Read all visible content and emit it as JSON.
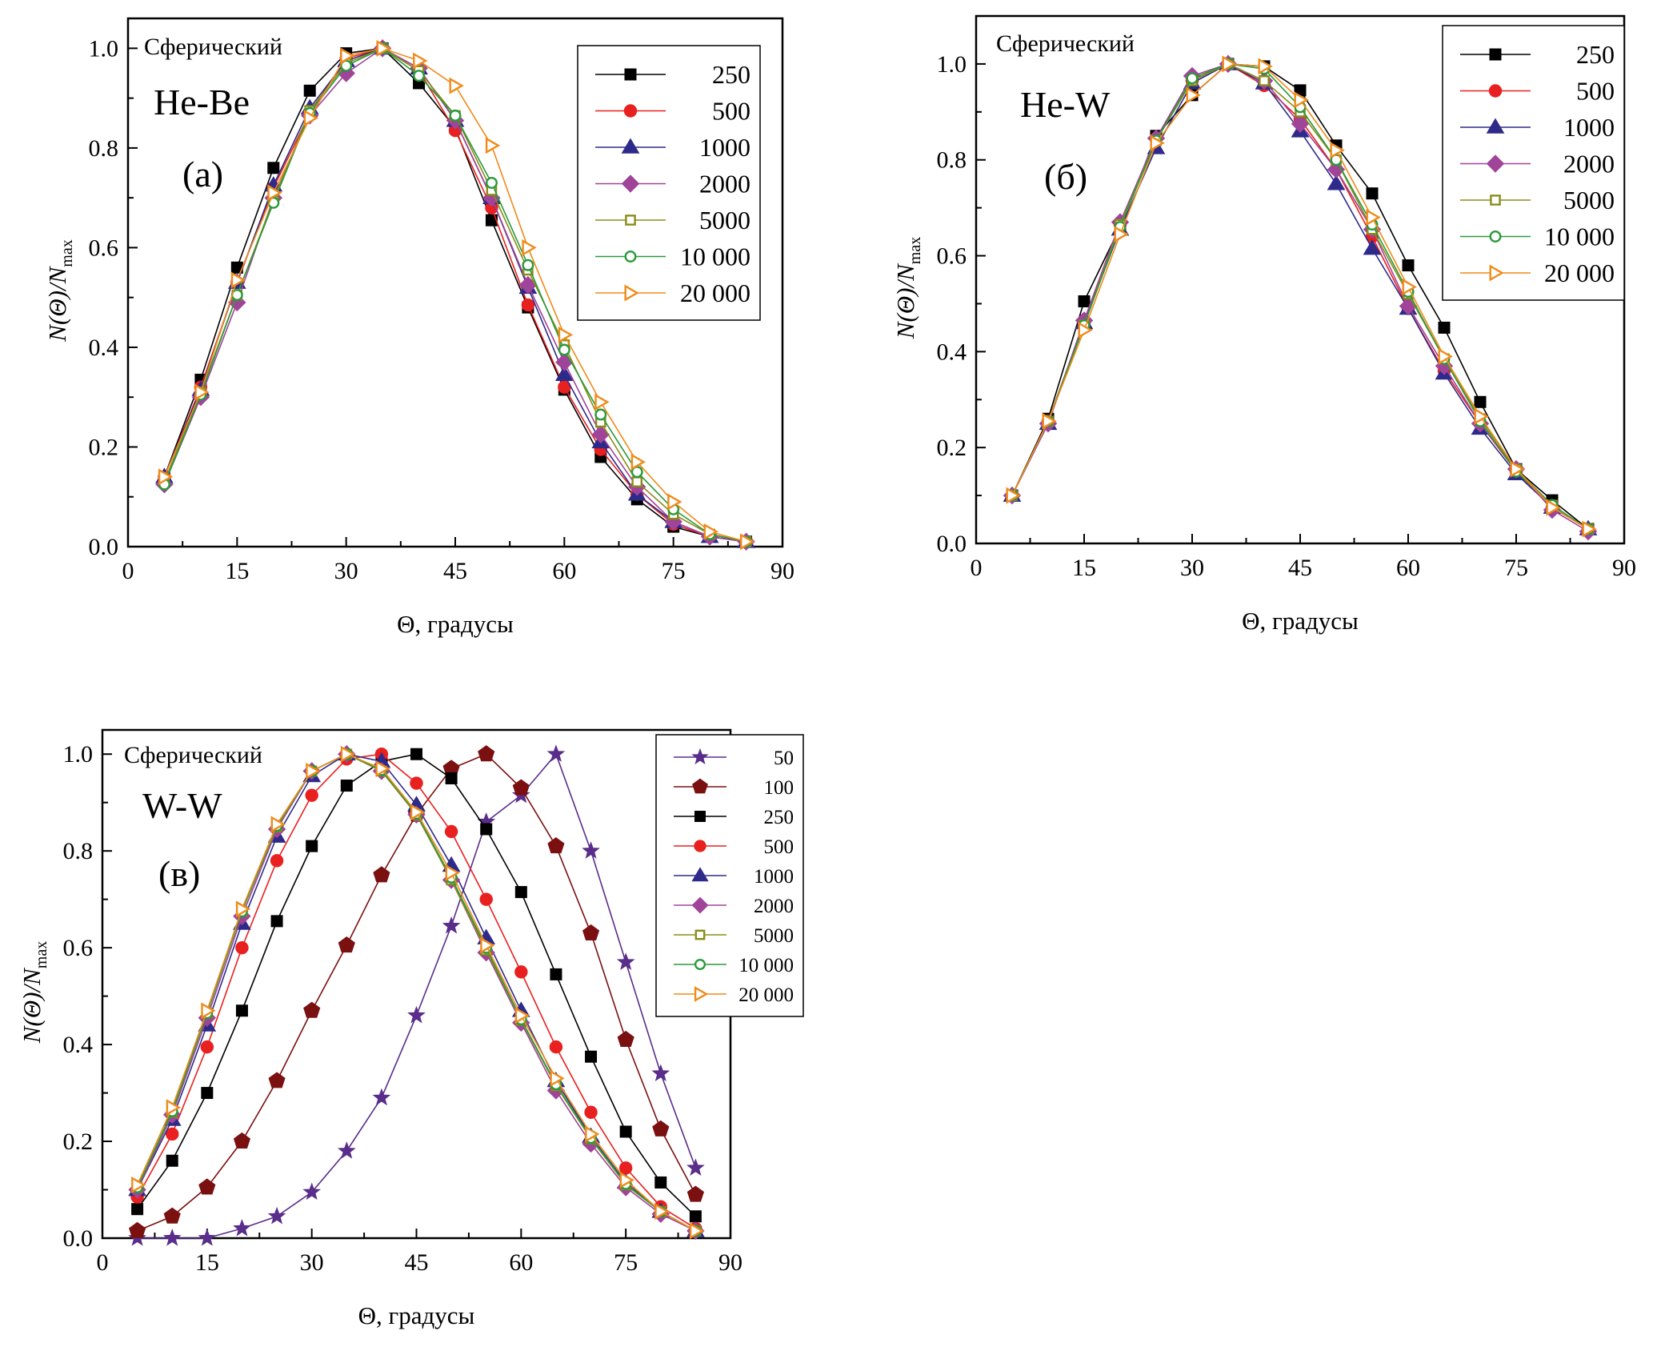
{
  "chart_data": [
    {
      "id": "a",
      "type": "line",
      "panel_label": "(а)",
      "system": "He-Be",
      "model": "Сферический",
      "xlabel": "Θ, градусы",
      "ylabel": {
        "main": "N(Θ)/N",
        "sub": "max"
      },
      "xlim": [
        0,
        90
      ],
      "ylim": [
        0,
        1.06
      ],
      "xticks": [
        0,
        15,
        30,
        45,
        60,
        75,
        90
      ],
      "yticks": [
        0.0,
        0.2,
        0.4,
        0.6,
        0.8,
        1.0
      ],
      "legend_placement": "top-right",
      "x": [
        5,
        10,
        15,
        20,
        25,
        30,
        35,
        40,
        45,
        50,
        55,
        60,
        65,
        70,
        75,
        80,
        85
      ],
      "series": [
        {
          "name": "250",
          "marker": "square-filled",
          "color": "#000000",
          "values": [
            0.14,
            0.335,
            0.56,
            0.76,
            0.915,
            0.99,
            1.0,
            0.93,
            0.84,
            0.655,
            0.48,
            0.315,
            0.18,
            0.095,
            0.04,
            0.02,
            0.01
          ]
        },
        {
          "name": "500",
          "marker": "circle-filled",
          "color": "#e8201f",
          "values": [
            0.14,
            0.32,
            0.53,
            0.72,
            0.87,
            0.98,
            1.0,
            0.955,
            0.835,
            0.68,
            0.485,
            0.32,
            0.195,
            0.105,
            0.045,
            0.02,
            0.01
          ]
        },
        {
          "name": "1000",
          "marker": "triangle-filled",
          "color": "#2e2a8a",
          "values": [
            0.14,
            0.315,
            0.53,
            0.725,
            0.88,
            0.975,
            1.0,
            0.96,
            0.855,
            0.7,
            0.52,
            0.345,
            0.21,
            0.105,
            0.05,
            0.02,
            0.01
          ]
        },
        {
          "name": "2000",
          "marker": "diamond-filled",
          "color": "#a0449a",
          "values": [
            0.125,
            0.3,
            0.49,
            0.7,
            0.865,
            0.95,
            1.0,
            0.96,
            0.855,
            0.7,
            0.525,
            0.37,
            0.225,
            0.12,
            0.05,
            0.02,
            0.01
          ]
        },
        {
          "name": "5000",
          "marker": "square-open",
          "color": "#8b8b1a",
          "values": [
            0.13,
            0.31,
            0.505,
            0.695,
            0.875,
            0.97,
            1.0,
            0.955,
            0.865,
            0.715,
            0.555,
            0.405,
            0.25,
            0.13,
            0.065,
            0.025,
            0.01
          ]
        },
        {
          "name": "10 000",
          "marker": "circle-open",
          "color": "#2a9a3a",
          "values": [
            0.125,
            0.305,
            0.505,
            0.69,
            0.87,
            0.965,
            1.0,
            0.945,
            0.865,
            0.73,
            0.565,
            0.395,
            0.265,
            0.15,
            0.075,
            0.025,
            0.01
          ]
        },
        {
          "name": "20 000",
          "marker": "triangle-right-open",
          "color": "#f08a1a",
          "values": [
            0.14,
            0.31,
            0.535,
            0.71,
            0.86,
            0.985,
            1.0,
            0.975,
            0.925,
            0.805,
            0.6,
            0.425,
            0.29,
            0.17,
            0.09,
            0.03,
            0.01
          ]
        }
      ]
    },
    {
      "id": "b",
      "type": "line",
      "panel_label": "(б)",
      "system": "He-W",
      "model": "Сферический",
      "xlabel": "Θ, градусы",
      "ylabel": {
        "main": "N(Θ)/N",
        "sub": "max"
      },
      "xlim": [
        0,
        90
      ],
      "ylim": [
        0,
        1.1
      ],
      "xticks": [
        0,
        15,
        30,
        45,
        60,
        75,
        90
      ],
      "yticks": [
        0.0,
        0.2,
        0.4,
        0.6,
        0.8,
        1.0
      ],
      "legend_placement": "top-right",
      "x": [
        5,
        10,
        15,
        20,
        25,
        30,
        35,
        40,
        45,
        50,
        55,
        60,
        65,
        70,
        75,
        80,
        85
      ],
      "series": [
        {
          "name": "250",
          "marker": "square-filled",
          "color": "#000000",
          "values": [
            0.1,
            0.26,
            0.505,
            0.66,
            0.85,
            0.935,
            1.0,
            0.995,
            0.945,
            0.83,
            0.73,
            0.58,
            0.45,
            0.295,
            0.155,
            0.09,
            0.03
          ]
        },
        {
          "name": "500",
          "marker": "circle-filled",
          "color": "#e8201f",
          "values": [
            0.1,
            0.255,
            0.46,
            0.665,
            0.845,
            0.965,
            1.0,
            0.955,
            0.885,
            0.78,
            0.64,
            0.49,
            0.36,
            0.25,
            0.15,
            0.075,
            0.03
          ]
        },
        {
          "name": "1000",
          "marker": "triangle-filled",
          "color": "#2e2a8a",
          "values": [
            0.1,
            0.25,
            0.46,
            0.655,
            0.825,
            0.96,
            1.0,
            0.96,
            0.86,
            0.75,
            0.615,
            0.49,
            0.355,
            0.24,
            0.145,
            0.075,
            0.03
          ]
        },
        {
          "name": "2000",
          "marker": "diamond-filled",
          "color": "#a0449a",
          "values": [
            0.1,
            0.25,
            0.465,
            0.67,
            0.845,
            0.975,
            1.0,
            0.965,
            0.875,
            0.78,
            0.655,
            0.495,
            0.37,
            0.25,
            0.155,
            0.07,
            0.025
          ]
        },
        {
          "name": "5000",
          "marker": "square-open",
          "color": "#8b8b1a",
          "values": [
            0.1,
            0.255,
            0.455,
            0.665,
            0.84,
            0.965,
            1.0,
            0.965,
            0.9,
            0.8,
            0.655,
            0.52,
            0.385,
            0.26,
            0.155,
            0.08,
            0.03
          ]
        },
        {
          "name": "10 000",
          "marker": "circle-open",
          "color": "#2a9a3a",
          "values": [
            0.1,
            0.255,
            0.455,
            0.66,
            0.84,
            0.97,
            1.0,
            0.99,
            0.91,
            0.8,
            0.665,
            0.525,
            0.385,
            0.255,
            0.15,
            0.08,
            0.03
          ]
        },
        {
          "name": "20 000",
          "marker": "triangle-right-open",
          "color": "#f08a1a",
          "values": [
            0.1,
            0.255,
            0.445,
            0.645,
            0.835,
            0.935,
            1.0,
            0.995,
            0.925,
            0.82,
            0.68,
            0.535,
            0.39,
            0.265,
            0.155,
            0.075,
            0.03
          ]
        }
      ]
    },
    {
      "id": "c",
      "type": "line",
      "panel_label": "(в)",
      "system": "W-W",
      "model": "Сферический",
      "xlabel": "Θ, градусы",
      "ylabel": {
        "main": "N(Θ)/N",
        "sub": "max"
      },
      "xlim": [
        0,
        90
      ],
      "ylim": [
        0,
        1.05
      ],
      "xticks": [
        0,
        15,
        30,
        45,
        60,
        75,
        90
      ],
      "yticks": [
        0.0,
        0.2,
        0.4,
        0.6,
        0.8,
        1.0
      ],
      "legend_placement": "top-right",
      "x": [
        5,
        10,
        15,
        20,
        25,
        30,
        35,
        40,
        45,
        50,
        55,
        60,
        65,
        70,
        75,
        80,
        85
      ],
      "series": [
        {
          "name": "50",
          "marker": "star-filled",
          "color": "#5a2d8a",
          "values": [
            0.0,
            0.0,
            0.0,
            0.02,
            0.045,
            0.095,
            0.18,
            0.29,
            0.46,
            0.645,
            0.86,
            0.915,
            1.0,
            0.8,
            0.57,
            0.34,
            0.145
          ]
        },
        {
          "name": "100",
          "marker": "pentagon-filled",
          "color": "#7a1010",
          "values": [
            0.015,
            0.045,
            0.105,
            0.2,
            0.325,
            0.47,
            0.605,
            0.75,
            0.875,
            0.97,
            1.0,
            0.93,
            0.81,
            0.63,
            0.41,
            0.225,
            0.09
          ]
        },
        {
          "name": "250",
          "marker": "square-filled",
          "color": "#000000",
          "values": [
            0.06,
            0.16,
            0.3,
            0.47,
            0.655,
            0.81,
            0.935,
            0.985,
            1.0,
            0.95,
            0.845,
            0.715,
            0.545,
            0.375,
            0.22,
            0.115,
            0.045
          ]
        },
        {
          "name": "500",
          "marker": "circle-filled",
          "color": "#e8201f",
          "values": [
            0.085,
            0.215,
            0.395,
            0.6,
            0.78,
            0.915,
            0.99,
            1.0,
            0.94,
            0.84,
            0.7,
            0.55,
            0.395,
            0.26,
            0.145,
            0.065,
            0.02
          ]
        },
        {
          "name": "1000",
          "marker": "triangle-filled",
          "color": "#2e2a8a",
          "values": [
            0.1,
            0.245,
            0.44,
            0.65,
            0.83,
            0.955,
            1.0,
            0.985,
            0.895,
            0.77,
            0.62,
            0.47,
            0.325,
            0.21,
            0.115,
            0.055,
            0.015
          ]
        },
        {
          "name": "2000",
          "marker": "diamond-filled",
          "color": "#a0449a",
          "values": [
            0.1,
            0.255,
            0.455,
            0.665,
            0.845,
            0.965,
            1.0,
            0.965,
            0.875,
            0.74,
            0.59,
            0.445,
            0.305,
            0.195,
            0.105,
            0.05,
            0.015
          ]
        },
        {
          "name": "5000",
          "marker": "square-open",
          "color": "#8b8b1a",
          "values": [
            0.105,
            0.26,
            0.465,
            0.675,
            0.85,
            0.965,
            1.0,
            0.965,
            0.875,
            0.74,
            0.595,
            0.45,
            0.315,
            0.205,
            0.11,
            0.055,
            0.015
          ]
        },
        {
          "name": "10 000",
          "marker": "circle-open",
          "color": "#2a9a3a",
          "values": [
            0.105,
            0.262,
            0.465,
            0.675,
            0.852,
            0.965,
            1.0,
            0.967,
            0.877,
            0.745,
            0.6,
            0.452,
            0.318,
            0.207,
            0.112,
            0.055,
            0.015
          ]
        },
        {
          "name": "20 000",
          "marker": "triangle-right-open",
          "color": "#f08a1a",
          "values": [
            0.11,
            0.27,
            0.47,
            0.68,
            0.855,
            0.965,
            1.0,
            0.97,
            0.88,
            0.755,
            0.605,
            0.46,
            0.33,
            0.215,
            0.12,
            0.055,
            0.015
          ]
        }
      ]
    }
  ]
}
